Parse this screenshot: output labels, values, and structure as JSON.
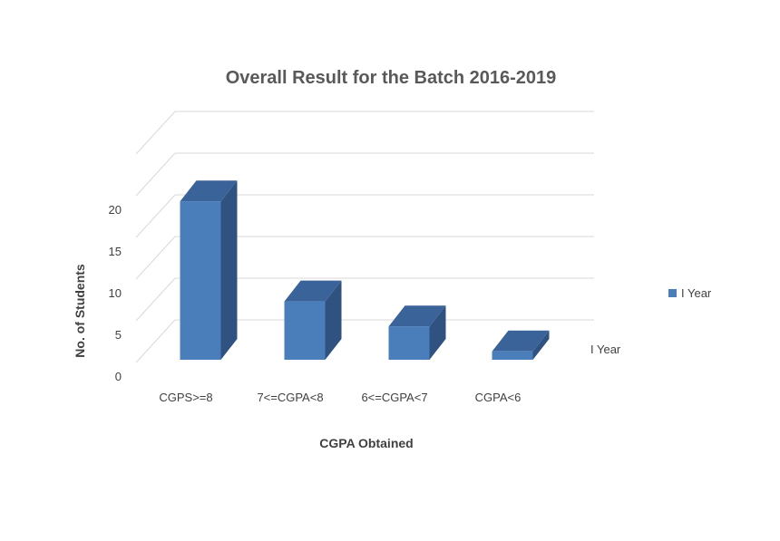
{
  "chart_data": {
    "type": "bar",
    "title": "Overall Result for the Batch 2016-2019",
    "xlabel": "CGPA Obtained",
    "ylabel": "No. of Students",
    "categories": [
      "CGPS>=8",
      "7<=CGPA<8",
      "6<=CGPA<7",
      "CGPA<6"
    ],
    "series": [
      {
        "name": "I Year",
        "values": [
          19,
          7,
          4,
          1
        ]
      }
    ],
    "ylim": [
      0,
      20
    ],
    "yticks": [
      0,
      5,
      10,
      15,
      20
    ],
    "depth_axis_label": "I Year",
    "legend_position": "right",
    "grid": true,
    "three_d": true,
    "colors": {
      "front": "#4a7ebb",
      "side": "#2f5280",
      "top": "#3a6399",
      "grid": "#d9d9d9"
    }
  }
}
